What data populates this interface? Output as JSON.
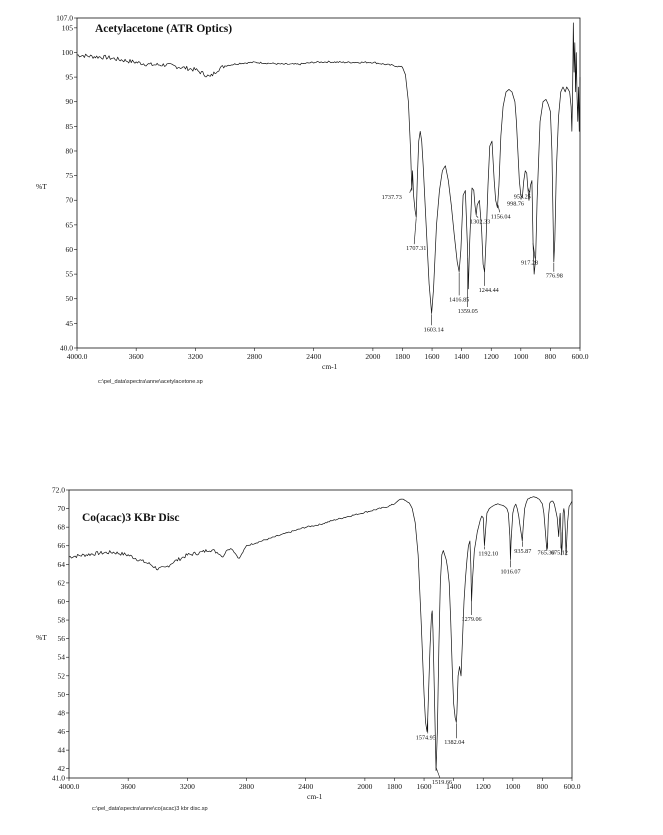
{
  "chart_data": [
    {
      "type": "line",
      "title": "Acetylacetone (ATR Optics)",
      "xlabel": "cm-1",
      "ylabel": "%T",
      "xlim": [
        4000,
        600
      ],
      "ylim": [
        40,
        107
      ],
      "xticks": [
        "4000.0",
        "3600",
        "3200",
        "2800",
        "2400",
        "2000",
        "1800",
        "1600",
        "1400",
        "1200",
        "1000",
        "800",
        "600.0"
      ],
      "xtick_values": [
        4000,
        3600,
        3200,
        2800,
        2400,
        2000,
        1800,
        1600,
        1400,
        1200,
        1000,
        800,
        600
      ],
      "yticks": [
        "40.0",
        "45",
        "50",
        "55",
        "60",
        "65",
        "70",
        "75",
        "80",
        "85",
        "90",
        "95",
        "100",
        "105",
        "107.0"
      ],
      "ytick_values": [
        40,
        45,
        50,
        55,
        60,
        65,
        70,
        75,
        80,
        85,
        90,
        95,
        100,
        105,
        107
      ],
      "grid": false,
      "series": [
        {
          "x": [
            4000,
            3900,
            3800,
            3700,
            3600,
            3500,
            3400,
            3300,
            3200,
            3100,
            3050,
            3000,
            2900,
            2800,
            2700,
            2600,
            2500,
            2400,
            2300,
            2200,
            2100,
            2000,
            1900,
            1850,
            1800,
            1780,
            1760,
            1745,
            1737,
            1732,
            1725,
            1715,
            1707,
            1700,
            1690,
            1680,
            1670,
            1660,
            1640,
            1620,
            1603,
            1590,
            1570,
            1550,
            1530,
            1510,
            1490,
            1470,
            1450,
            1430,
            1417,
            1405,
            1390,
            1375,
            1360,
            1355,
            1345,
            1330,
            1318,
            1310,
            1302,
            1295,
            1280,
            1265,
            1255,
            1245,
            1235,
            1222,
            1210,
            1195,
            1180,
            1170,
            1158,
            1148,
            1135,
            1120,
            1100,
            1080,
            1060,
            1040,
            1030,
            1020,
            1010,
            1000,
            990,
            980,
            970,
            960,
            954,
            945,
            935,
            925,
            917,
            910,
            900,
            890,
            870,
            850,
            830,
            815,
            800,
            790,
            777,
            770,
            760,
            745,
            730,
            715,
            700,
            690,
            680,
            670,
            660,
            655,
            650,
            645,
            640,
            635,
            630,
            625,
            620,
            615,
            610,
            605,
            600
          ],
          "y": [
            99.5,
            99.2,
            99.0,
            98.5,
            98.0,
            97.5,
            97.5,
            97.0,
            96.5,
            95.0,
            96.5,
            97.3,
            97.8,
            98.0,
            97.8,
            97.6,
            97.6,
            98.0,
            98.1,
            98.0,
            98.0,
            98.0,
            97.5,
            97.3,
            97.0,
            95.5,
            90.0,
            80.0,
            72.0,
            76.0,
            71.0,
            68.0,
            66.5,
            74.0,
            82.0,
            84.0,
            82.0,
            77.0,
            65.0,
            53.0,
            47.0,
            52.0,
            65.0,
            72.0,
            76.0,
            77.0,
            74.0,
            69.0,
            63.0,
            57.5,
            55.5,
            60.0,
            71.0,
            72.0,
            60.0,
            52.0,
            62.0,
            72.5,
            72.0,
            69.0,
            67.0,
            69.0,
            70.0,
            64.0,
            57.0,
            55.5,
            62.0,
            73.0,
            81.0,
            82.0,
            74.0,
            70.0,
            68.5,
            73.0,
            83.0,
            89.0,
            92.0,
            92.5,
            92.0,
            90.0,
            86.0,
            80.0,
            74.0,
            71.0,
            70.5,
            74.0,
            76.0,
            75.5,
            73.0,
            70.0,
            73.0,
            74.0,
            61.0,
            55.0,
            58.0,
            70.0,
            86.0,
            90.0,
            90.5,
            89.5,
            88.0,
            80.0,
            57.5,
            62.0,
            76.0,
            87.0,
            92.0,
            93.0,
            92.0,
            93.0,
            92.5,
            92.0,
            89.0,
            84.0,
            92.0,
            106.0,
            96.0,
            102.0,
            92.0,
            100.0,
            91.0,
            86.0,
            93.0,
            84.0,
            95.0
          ]
        }
      ],
      "annotations": [
        "1737.73",
        "1707.31",
        "1603.14",
        "1416.85",
        "1359.05",
        "1302.33",
        "1244.44",
        "1156.04",
        "998.76",
        "953.25",
        "917.28",
        "776.98"
      ],
      "annotation_x": [
        1737.73,
        1707.31,
        1603.14,
        1416.85,
        1359.05,
        1302.33,
        1244.44,
        1156.04,
        998.76,
        953.25,
        917.28,
        776.98
      ],
      "file_path": "c:\\pel_data\\spectra\\anne\\acetylacetone.sp"
    },
    {
      "type": "line",
      "title": "Co(acac)3 KBr Disc",
      "xlabel": "cm-1",
      "ylabel": "%T",
      "xlim": [
        4000,
        600
      ],
      "ylim": [
        41,
        72
      ],
      "xticks": [
        "4000.0",
        "3600",
        "3200",
        "2800",
        "2400",
        "2000",
        "1800",
        "1600",
        "1400",
        "1200",
        "1000",
        "800",
        "600.0"
      ],
      "xtick_values": [
        4000,
        3600,
        3200,
        2800,
        2400,
        2000,
        1800,
        1600,
        1400,
        1200,
        1000,
        800,
        600
      ],
      "yticks": [
        "41.0",
        "42",
        "44",
        "46",
        "48",
        "50",
        "52",
        "54",
        "56",
        "58",
        "60",
        "62",
        "64",
        "66",
        "68",
        "70",
        "72.0"
      ],
      "ytick_values": [
        41,
        42,
        44,
        46,
        48,
        50,
        52,
        54,
        56,
        58,
        60,
        62,
        64,
        66,
        68,
        70,
        72
      ],
      "grid": false,
      "series": [
        {
          "x": [
            4000,
            3900,
            3800,
            3700,
            3600,
            3500,
            3450,
            3400,
            3350,
            3300,
            3200,
            3100,
            3050,
            3000,
            2960,
            2930,
            2900,
            2850,
            2800,
            2700,
            2600,
            2500,
            2400,
            2300,
            2200,
            2100,
            2000,
            1900,
            1850,
            1800,
            1780,
            1760,
            1740,
            1720,
            1700,
            1680,
            1660,
            1640,
            1620,
            1600,
            1590,
            1580,
            1575,
            1570,
            1560,
            1550,
            1545,
            1540,
            1530,
            1522,
            1519,
            1510,
            1500,
            1490,
            1480,
            1470,
            1460,
            1450,
            1440,
            1430,
            1420,
            1410,
            1400,
            1390,
            1385,
            1382,
            1378,
            1370,
            1360,
            1350,
            1340,
            1330,
            1320,
            1310,
            1300,
            1290,
            1284,
            1279,
            1274,
            1260,
            1240,
            1220,
            1210,
            1200,
            1192,
            1185,
            1175,
            1160,
            1140,
            1120,
            1100,
            1080,
            1060,
            1040,
            1030,
            1020,
            1016,
            1012,
            1000,
            990,
            980,
            970,
            960,
            950,
            940,
            936,
            930,
            920,
            910,
            900,
            880,
            860,
            840,
            820,
            800,
            790,
            780,
            770,
            765,
            760,
            750,
            740,
            730,
            720,
            710,
            700,
            690,
            685,
            680,
            675,
            670,
            665,
            660,
            655,
            650,
            645,
            640,
            630,
            620,
            610,
            600
          ],
          "y": [
            64.8,
            65.0,
            65.2,
            65.3,
            65.0,
            64.3,
            64.0,
            63.5,
            63.6,
            64.2,
            65.0,
            65.3,
            65.6,
            65.3,
            64.8,
            65.6,
            65.7,
            64.6,
            66.0,
            66.5,
            67.0,
            67.5,
            68.0,
            68.3,
            68.8,
            69.2,
            69.6,
            70.0,
            70.2,
            70.5,
            70.8,
            71.0,
            71.0,
            70.8,
            70.6,
            70.0,
            68.5,
            65.0,
            58.0,
            50.0,
            47.0,
            46.0,
            47.5,
            50.0,
            55.0,
            58.5,
            59.0,
            57.0,
            50.0,
            44.0,
            41.8,
            46.0,
            55.0,
            62.0,
            65.0,
            65.5,
            65.0,
            64.5,
            63.5,
            62.0,
            58.0,
            53.0,
            49.0,
            47.5,
            47.2,
            47.0,
            48.0,
            52.0,
            53.0,
            52.0,
            56.0,
            60.0,
            62.5,
            64.5,
            66.0,
            66.5,
            64.0,
            60.0,
            62.0,
            65.5,
            67.5,
            68.8,
            69.2,
            69.0,
            66.0,
            67.5,
            69.5,
            70.0,
            70.2,
            70.4,
            70.5,
            70.4,
            70.3,
            70.0,
            69.5,
            67.0,
            64.5,
            66.5,
            69.5,
            70.2,
            70.5,
            70.0,
            69.2,
            68.0,
            67.0,
            66.5,
            68.0,
            70.0,
            70.6,
            71.0,
            71.2,
            71.3,
            71.2,
            71.0,
            70.5,
            69.5,
            67.5,
            65.5,
            66.5,
            69.0,
            70.6,
            70.8,
            70.8,
            70.5,
            69.8,
            69.0,
            67.0,
            68.5,
            69.5,
            67.5,
            65.0,
            66.5,
            69.5,
            70.0,
            69.5,
            67.5,
            65.0,
            68.5,
            70.2,
            70.5,
            70.8
          ]
        }
      ],
      "annotations": [
        "1574.95",
        "1519.66",
        "1382.04",
        "1279.06",
        "1192.10",
        "1016.07",
        "935.87",
        "765.30",
        "675.12"
      ],
      "annotation_x": [
        1574.95,
        1519.66,
        1382.04,
        1279.06,
        1192.1,
        1016.07,
        935.87,
        765.3,
        675.12
      ],
      "file_path": "c:\\pel_data\\spectra\\anne\\co(acac)3 kbr disc.sp"
    }
  ]
}
